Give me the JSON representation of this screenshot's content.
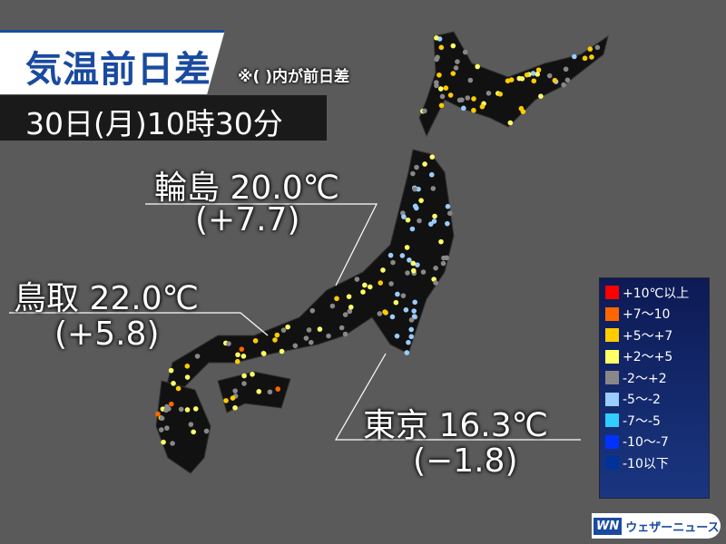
{
  "title": "気温前日差",
  "note": "※( )内が前日差",
  "datetime": "30日(月)10時30分",
  "callouts": [
    {
      "city": "輪島",
      "temp": "20.0℃",
      "diff": "(+7.7)"
    },
    {
      "city": "鳥取",
      "temp": "22.0℃",
      "diff": "(+5.8)"
    },
    {
      "city": "東京",
      "temp": "16.3℃",
      "diff": "(−1.8)"
    }
  ],
  "legend": [
    {
      "label": "+10℃以上",
      "color": "#ff0000"
    },
    {
      "label": "+7〜10",
      "color": "#ff6600"
    },
    {
      "label": "+5〜+7",
      "color": "#ffcc00"
    },
    {
      "label": "+2〜+5",
      "color": "#ffff66"
    },
    {
      "label": "-2〜+2",
      "color": "#888888"
    },
    {
      "label": "-5〜-2",
      "color": "#99ccff"
    },
    {
      "label": "-7〜-5",
      "color": "#33ccff"
    },
    {
      "label": "-10〜-7",
      "color": "#0033ff"
    },
    {
      "label": "-10以下",
      "color": "#003399"
    }
  ],
  "logo": {
    "mark": "WN",
    "text": "ウェザーニュース"
  }
}
